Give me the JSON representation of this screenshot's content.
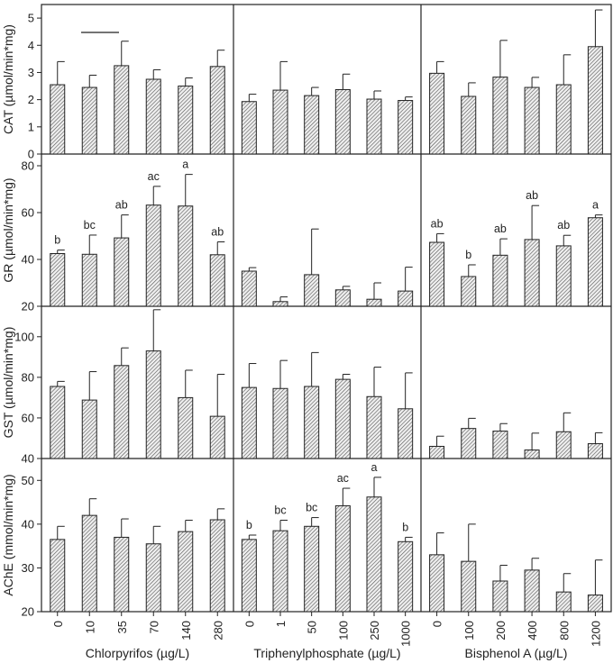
{
  "chart_data": {
    "type": "bar",
    "panel_groups": [
      {
        "xlabel": "Chlorpyrifos (µg/L)",
        "concentrations": [
          "0",
          "10",
          "35",
          "70",
          "140",
          "280"
        ]
      },
      {
        "xlabel": "Triphenylphosphate (µg/L)",
        "concentrations": [
          "0",
          "1",
          "50",
          "100",
          "250",
          "1000"
        ]
      },
      {
        "xlabel": "Bisphenol A (µg/L)",
        "concentrations": [
          "0",
          "100",
          "200",
          "400",
          "800",
          "1200"
        ]
      }
    ],
    "rows": [
      {
        "ylabel": "CAT (µmol/min*mg)",
        "ylim": [
          0,
          5.5
        ],
        "yticks": [
          0,
          1,
          2,
          3,
          4,
          5
        ],
        "groups": [
          {
            "values": [
              2.55,
              2.45,
              3.25,
              2.75,
              2.5,
              3.22
            ],
            "errors": [
              0.85,
              0.45,
              0.9,
              0.35,
              0.3,
              0.6
            ],
            "letters": [
              "",
              "",
              "",
              "",
              "",
              ""
            ]
          },
          {
            "values": [
              1.93,
              2.35,
              2.15,
              2.37,
              2.02,
              1.97
            ],
            "errors": [
              0.27,
              1.05,
              0.3,
              0.57,
              0.3,
              0.13
            ],
            "letters": [
              "",
              "",
              "",
              "",
              "",
              ""
            ]
          },
          {
            "values": [
              2.97,
              2.12,
              2.83,
              2.45,
              2.55,
              3.95
            ],
            "errors": [
              0.43,
              0.5,
              1.35,
              0.37,
              1.1,
              1.35
            ],
            "letters": [
              "",
              "",
              "",
              "",
              "",
              ""
            ]
          }
        ]
      },
      {
        "ylabel": "GR (µmol/min*mg)",
        "ylim": [
          20,
          85
        ],
        "yticks": [
          20,
          40,
          60,
          80
        ],
        "groups": [
          {
            "values": [
              42.5,
              42.2,
              49.2,
              63.2,
              62.8,
              42.0
            ],
            "errors": [
              1.5,
              8.2,
              9.8,
              8.0,
              13.5,
              5.5
            ],
            "letters": [
              "b",
              "bc",
              "ab",
              "ac",
              "a",
              "ab"
            ]
          },
          {
            "values": [
              35.0,
              22.0,
              33.5,
              27.0,
              23.0,
              26.5
            ],
            "errors": [
              1.5,
              2.0,
              19.5,
              1.5,
              7.0,
              10.2
            ],
            "letters": [
              "",
              "",
              "",
              "",
              "",
              ""
            ]
          },
          {
            "values": [
              47.3,
              32.7,
              41.8,
              48.5,
              45.8,
              57.8
            ],
            "errors": [
              3.7,
              5.0,
              7.0,
              14.5,
              4.5,
              1.2
            ],
            "letters": [
              "ab",
              "b",
              "ab",
              "ab",
              "ab",
              "a"
            ]
          }
        ]
      },
      {
        "ylabel": "GST (µmol/min*mg)",
        "ylim": [
          40,
          115
        ],
        "yticks": [
          40,
          60,
          80,
          100
        ],
        "groups": [
          {
            "values": [
              75.5,
              68.8,
              85.8,
              93.0,
              70.0,
              60.8
            ],
            "errors": [
              2.5,
              14.0,
              8.7,
              20.3,
              13.5,
              20.7
            ],
            "letters": [
              "",
              "",
              "",
              "",
              "",
              ""
            ]
          },
          {
            "values": [
              75.0,
              74.5,
              75.5,
              79.0,
              70.5,
              64.5
            ],
            "errors": [
              11.8,
              13.8,
              16.7,
              2.5,
              14.5,
              17.7
            ],
            "letters": [
              "",
              "",
              "",
              "",
              "",
              ""
            ]
          },
          {
            "values": [
              46.0,
              54.8,
              53.5,
              44.2,
              53.2,
              47.3
            ],
            "errors": [
              5.0,
              5.0,
              3.7,
              8.3,
              9.3,
              5.4
            ],
            "letters": [
              "",
              "",
              "",
              "",
              "",
              ""
            ]
          }
        ]
      },
      {
        "ylabel": "AChE (mmol/min*mg)",
        "ylim": [
          20,
          55
        ],
        "yticks": [
          20,
          30,
          40,
          50
        ],
        "groups": [
          {
            "values": [
              36.5,
              42.0,
              37.0,
              35.5,
              38.3,
              41.0
            ],
            "errors": [
              3.0,
              3.8,
              4.2,
              4.0,
              2.6,
              2.5
            ],
            "letters": [
              "",
              "",
              "",
              "",
              "",
              ""
            ]
          },
          {
            "values": [
              36.5,
              38.5,
              39.5,
              44.2,
              46.2,
              36.0
            ],
            "errors": [
              1.0,
              2.4,
              2.0,
              4.0,
              4.5,
              1.0
            ],
            "letters": [
              "b",
              "bc",
              "bc",
              "ac",
              "a",
              "b"
            ]
          },
          {
            "values": [
              33.0,
              31.5,
              27.0,
              29.5,
              24.5,
              23.8
            ],
            "errors": [
              5.0,
              8.5,
              3.6,
              2.7,
              4.2,
              8.0
            ],
            "letters": [
              "",
              "",
              "",
              "",
              "",
              ""
            ]
          }
        ]
      }
    ],
    "grid": false,
    "legend": "none"
  }
}
